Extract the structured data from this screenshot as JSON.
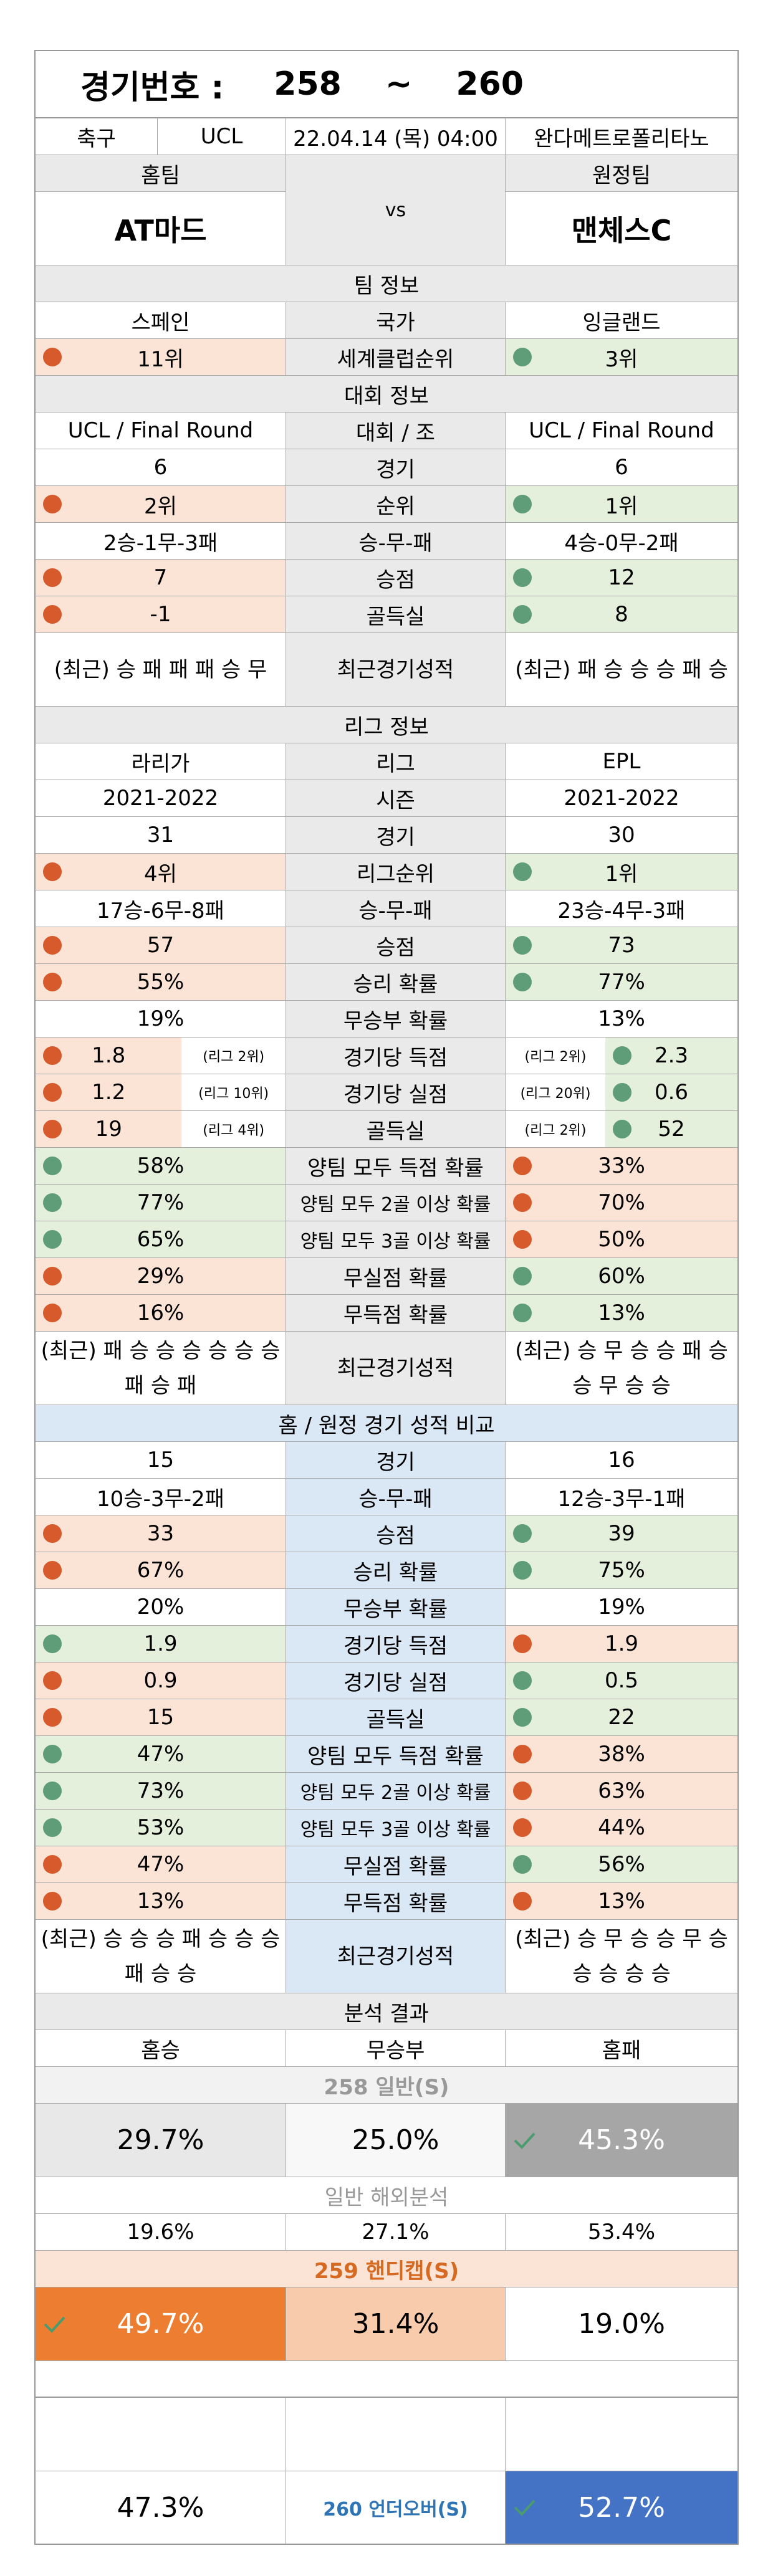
{
  "header": {
    "label": "경기번호 :",
    "from": "258",
    "tilde": "~",
    "to": "260"
  },
  "match": {
    "sport": "축구",
    "league": "UCL",
    "datetime": "22.04.14 (목) 04:00",
    "venue": "완다메트로폴리타노"
  },
  "teams": {
    "home_label": "홈팀",
    "away_label": "원정팀",
    "home": "AT마드",
    "vs": "vs",
    "away": "맨체스C"
  },
  "team_info": {
    "title": "팀 정보",
    "country": {
      "home": "스페인",
      "label": "국가",
      "away": "잉글랜드"
    },
    "club_rank": {
      "home": "11위",
      "label": "세계클럽순위",
      "away": "3위"
    }
  },
  "cup_info": {
    "title": "대회 정보",
    "rows": [
      {
        "home": "UCL / Final Round",
        "label": "대회 / 조",
        "away": "UCL / Final Round"
      },
      {
        "home": "6",
        "label": "경기",
        "away": "6"
      },
      {
        "home": "2위",
        "label": "순위",
        "away": "1위"
      },
      {
        "home": "2승-1무-3패",
        "label": "승-무-패",
        "away": "4승-0무-2패"
      },
      {
        "home": "7",
        "label": "승점",
        "away": "12"
      },
      {
        "home": "-1",
        "label": "골득실",
        "away": "8"
      }
    ],
    "recent": {
      "home": "(최근) 승 패 패 패 승 무",
      "label": "최근경기성적",
      "away": "(최근) 패 승 승 승 패 승"
    }
  },
  "league_info": {
    "title": "리그 정보",
    "rows": [
      {
        "home": "라리가",
        "label": "리그",
        "away": "EPL"
      },
      {
        "home": "2021-2022",
        "label": "시즌",
        "away": "2021-2022"
      },
      {
        "home": "31",
        "label": "경기",
        "away": "30"
      },
      {
        "home": "4위",
        "label": "리그순위",
        "away": "1위"
      },
      {
        "home": "17승-6무-8패",
        "label": "승-무-패",
        "away": "23승-4무-3패"
      },
      {
        "home": "57",
        "label": "승점",
        "away": "73"
      },
      {
        "home": "55%",
        "label": "승리 확률",
        "away": "77%"
      },
      {
        "home": "19%",
        "label": "무승부 확률",
        "away": "13%"
      }
    ],
    "ranked": [
      {
        "home": "1.8",
        "home_rank": "(리그 2위)",
        "label": "경기당 득점",
        "away_rank": "(리그 2위)",
        "away": "2.3"
      },
      {
        "home": "1.2",
        "home_rank": "(리그 10위)",
        "label": "경기당 실점",
        "away_rank": "(리그 20위)",
        "away": "0.6"
      },
      {
        "home": "19",
        "home_rank": "(리그 4위)",
        "label": "골득실",
        "away_rank": "(리그 2위)",
        "away": "52"
      }
    ],
    "probs": [
      {
        "home": "58%",
        "label": "양팀 모두 득점 확률",
        "away": "33%"
      },
      {
        "home": "77%",
        "label": "양팀 모두 2골 이상 확률",
        "away": "70%"
      },
      {
        "home": "65%",
        "label": "양팀 모두 3골 이상 확률",
        "away": "50%"
      },
      {
        "home": "29%",
        "label": "무실점 확률",
        "away": "60%"
      },
      {
        "home": "16%",
        "label": "무득점 확률",
        "away": "13%"
      }
    ],
    "recent": {
      "home": "(최근) 패 승 승 승 승 승 승 패 승 패",
      "label": "최근경기성적",
      "away": "(최근) 승 무 승 승 패 승 승 무 승 승"
    }
  },
  "homeaway": {
    "title": "홈 / 원정 경기 성적 비교",
    "rows": [
      {
        "home": "15",
        "label": "경기",
        "away": "16"
      },
      {
        "home": "10승-3무-2패",
        "label": "승-무-패",
        "away": "12승-3무-1패"
      },
      {
        "home": "33",
        "label": "승점",
        "away": "39"
      },
      {
        "home": "67%",
        "label": "승리 확률",
        "away": "75%"
      },
      {
        "home": "20%",
        "label": "무승부 확률",
        "away": "19%"
      },
      {
        "home": "1.9",
        "label": "경기당 득점",
        "away": "1.9"
      },
      {
        "home": "0.9",
        "label": "경기당 실점",
        "away": "0.5"
      },
      {
        "home": "15",
        "label": "골득실",
        "away": "22"
      },
      {
        "home": "47%",
        "label": "양팀 모두 득점 확률",
        "away": "38%"
      },
      {
        "home": "73%",
        "label": "양팀 모두 2골 이상 확률",
        "away": "63%"
      },
      {
        "home": "53%",
        "label": "양팀 모두 3골 이상 확률",
        "away": "44%"
      },
      {
        "home": "47%",
        "label": "무실점 확률",
        "away": "56%"
      },
      {
        "home": "13%",
        "label": "무득점 확률",
        "away": "13%"
      }
    ],
    "recent": {
      "home": "(최근) 승 승 승 패 승 승 승 패 승 승",
      "label": "최근경기성적",
      "away": "(최근) 승 무 승 승 무 승 승 승 승 승"
    }
  },
  "analysis": {
    "title": "분석 결과",
    "cols": {
      "home": "홈승",
      "draw": "무승부",
      "away": "홈패"
    },
    "g258": {
      "title": "258 일반(S)",
      "home": "29.7%",
      "draw": "25.0%",
      "away": "45.3%"
    },
    "overseas": {
      "title": "일반 해외분석",
      "home": "19.6%",
      "draw": "27.1%",
      "away": "53.4%"
    },
    "g259": {
      "title": "259 핸디캡(S)",
      "home": "49.7%",
      "draw": "31.4%",
      "away": "19.0%"
    },
    "g260": {
      "under": "47.3%",
      "title": "260 언더오버(S)",
      "over": "52.7%"
    }
  },
  "colors": {
    "orange": "#ed7d31",
    "blue": "#4472c4",
    "gray": "#a6a6a6",
    "red_dot": "#d75a2c",
    "green_dot": "#5f9c78"
  }
}
